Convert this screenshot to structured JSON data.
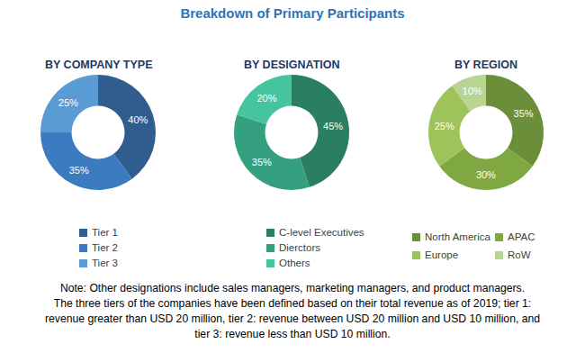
{
  "title": "Breakdown of Primary Participants",
  "chart_data": [
    {
      "type": "pie",
      "title": "BY COMPANY TYPE",
      "categories": [
        "Tier 1",
        "Tier 2",
        "Tier 3"
      ],
      "values": [
        40,
        35,
        25
      ],
      "value_labels": [
        "40%",
        "35%",
        "25%"
      ],
      "colors": [
        "#2f5d8e",
        "#3b7bbf",
        "#5a9bd5"
      ],
      "data_labels": true
    },
    {
      "type": "pie",
      "title": "BY DESIGNATION",
      "categories": [
        "C-level Executives",
        "Dierctors",
        "Others"
      ],
      "values": [
        45,
        35,
        20
      ],
      "value_labels": [
        "45%",
        "35%",
        "20%"
      ],
      "colors": [
        "#2a7f62",
        "#35a07f",
        "#46c4a0"
      ],
      "data_labels": true
    },
    {
      "type": "pie",
      "title": "BY REGION",
      "categories": [
        "North America",
        "APAC",
        "Europe",
        "RoW"
      ],
      "values": [
        35,
        30,
        25,
        10
      ],
      "value_labels": [
        "35%",
        "30%",
        "25%",
        "10%"
      ],
      "colors": [
        "#6b8e3a",
        "#7fa843",
        "#9dc35a",
        "#b8d492"
      ],
      "data_labels": true
    }
  ],
  "note": [
    "Note: Other designations include sales managers, marketing managers, and product managers.",
    "The three tiers of the companies have been defined based on their total revenue as of 2019; tier 1:",
    "revenue greater than USD 20 million, tier 2: revenue between USD 20 million and USD 10 million, and",
    "tier 3: revenue less than USD 10 million."
  ]
}
